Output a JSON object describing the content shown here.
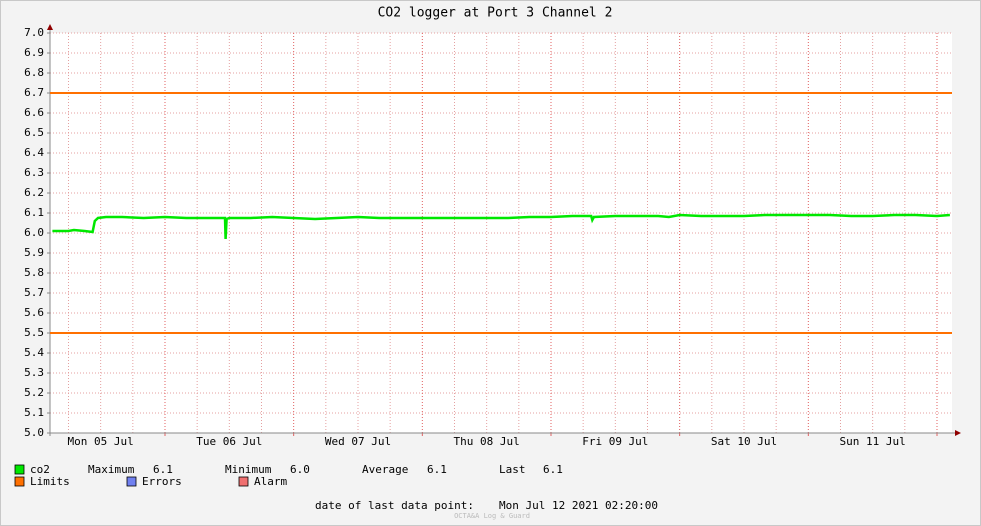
{
  "chart_data": {
    "type": "line",
    "title": "CO2 logger at Port 3 Channel 2",
    "x": [
      3,
      6,
      7,
      9,
      10.5,
      10.9,
      11.5,
      13,
      16,
      20,
      24,
      28,
      32,
      35.2,
      35.3,
      35.5,
      36,
      40,
      44,
      48,
      52,
      56,
      60,
      64,
      68,
      72,
      76,
      80,
      84,
      88,
      92,
      96,
      100,
      103.5,
      103.7,
      104,
      108,
      112,
      116,
      118,
      120,
      124,
      128,
      132,
      136,
      140,
      144,
      148,
      152,
      156,
      160,
      164,
      168,
      170.4
    ],
    "series": [
      {
        "name": "co2",
        "color": "#00e800",
        "values": [
          6.01,
          6.01,
          6.015,
          6.01,
          6.005,
          6.06,
          6.075,
          6.08,
          6.08,
          6.075,
          6.08,
          6.075,
          6.075,
          6.075,
          5.97,
          6.07,
          6.075,
          6.075,
          6.08,
          6.075,
          6.07,
          6.075,
          6.08,
          6.075,
          6.075,
          6.075,
          6.075,
          6.075,
          6.075,
          6.075,
          6.08,
          6.08,
          6.085,
          6.085,
          6.065,
          6.08,
          6.085,
          6.085,
          6.085,
          6.08,
          6.09,
          6.085,
          6.085,
          6.085,
          6.09,
          6.09,
          6.09,
          6.09,
          6.085,
          6.085,
          6.09,
          6.09,
          6.085,
          6.09
        ]
      }
    ],
    "limits": {
      "name": "Limits",
      "color": "#ff7000",
      "values": [
        6.7,
        5.5
      ]
    },
    "legend_extra": [
      {
        "name": "Errors",
        "color": "#7080f0"
      },
      {
        "name": "Alarm",
        "color": "#f07070"
      }
    ],
    "stats": [
      {
        "label": "Maximum",
        "value": "6.1"
      },
      {
        "label": "Minimum",
        "value": "6.0"
      },
      {
        "label": "Average",
        "value": "6.1"
      },
      {
        "label": "Last",
        "value": "6.1"
      }
    ],
    "footer_label": "date of last data point:",
    "footer_value": "Mon Jul 12 2021 02:20:00",
    "watermark": "OCTA&A Log & Guard",
    "xlim": [
      2.55,
      170.8
    ],
    "xticks": [
      {
        "value": 12,
        "label": "Mon 05 Jul"
      },
      {
        "value": 36,
        "label": "Tue 06 Jul"
      },
      {
        "value": 60,
        "label": "Wed 07 Jul"
      },
      {
        "value": 84,
        "label": "Thu 08 Jul"
      },
      {
        "value": 108,
        "label": "Fri 09 Jul"
      },
      {
        "value": 132,
        "label": "Sat 10 Jul"
      },
      {
        "value": 156,
        "label": "Sun 11 Jul"
      }
    ],
    "xgrid_major": [
      24,
      48,
      72,
      96,
      120,
      144,
      168
    ],
    "xgrid_minor": [
      6,
      12,
      18,
      30,
      36,
      42,
      54,
      60,
      66,
      78,
      84,
      90,
      102,
      108,
      114,
      126,
      132,
      138,
      150,
      156,
      162
    ],
    "ylim": [
      5.0,
      7.0
    ],
    "yticks": [
      {
        "value": 5.0,
        "label": "5.0"
      },
      5.1,
      5.2,
      5.3,
      5.4,
      5.5,
      5.6,
      5.7,
      5.8,
      5.9,
      {
        "value": 6.0,
        "label": "6.0"
      },
      6.1,
      6.2,
      6.3,
      6.4,
      6.5,
      6.6,
      6.7,
      6.8,
      6.9,
      {
        "value": 7.0,
        "label": "7.0"
      }
    ],
    "grid": true
  }
}
